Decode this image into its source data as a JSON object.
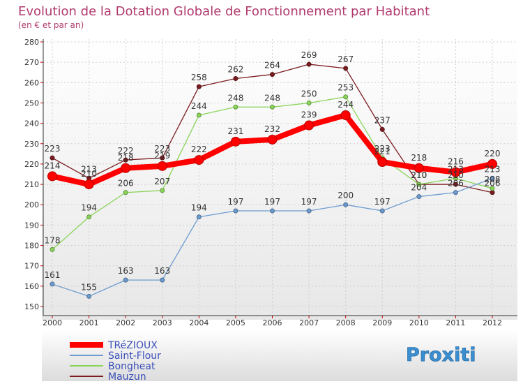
{
  "chart_data": {
    "type": "line",
    "title": "Evolution de la Dotation Globale de Fonctionnement par Habitant",
    "subtitle": "(en € et par an)",
    "xlabel": "",
    "ylabel": "",
    "ylim": [
      150,
      280
    ],
    "yticks": [
      150,
      160,
      170,
      180,
      190,
      200,
      210,
      220,
      230,
      240,
      250,
      260,
      270,
      280
    ],
    "x": [
      "2000",
      "2001",
      "2002",
      "2003",
      "2004",
      "2005",
      "2006",
      "2007",
      "2008",
      "2009",
      "2010",
      "2011",
      "2012"
    ],
    "grid": true,
    "legend_position": "bottom-left",
    "series": [
      {
        "name": "Mauzun",
        "color": "#7b1c20",
        "values": [
          223,
          213,
          222,
          223,
          258,
          262,
          264,
          269,
          267,
          237,
          210,
          210,
          206
        ]
      },
      {
        "name": "Bongheat",
        "color": "#8ad45a",
        "values": [
          178,
          194,
          206,
          207,
          244,
          248,
          248,
          250,
          253,
          223,
          210,
          213,
          208
        ]
      },
      {
        "name": "Saint-Flour",
        "color": "#6c9bd0",
        "values": [
          161,
          155,
          163,
          163,
          194,
          197,
          197,
          197,
          200,
          197,
          204,
          206,
          213
        ]
      },
      {
        "name": "TRéZIOUX",
        "color": "#ff0000",
        "values": [
          214,
          210,
          218,
          219,
          222,
          231,
          232,
          239,
          244,
          221,
          218,
          216,
          220
        ]
      }
    ]
  },
  "logo": {
    "text": "Proxiti"
  }
}
